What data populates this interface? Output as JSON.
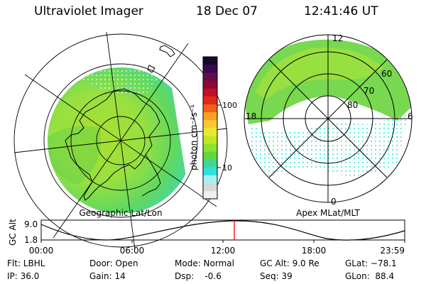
{
  "header": {
    "instrument": "Ultraviolet Imager",
    "date": "18 Dec 07",
    "time": "12:41:46 UT"
  },
  "left_map": {
    "caption": "Geographic Lat/Lon"
  },
  "right_map": {
    "caption": "Apex MLat/MLT",
    "mlt_labels": [
      "12",
      "6",
      "0",
      "18"
    ],
    "mlat_labels": [
      "60",
      "70",
      "80"
    ]
  },
  "colorbar": {
    "unit_label": "photon cm⁻²s⁻¹",
    "tick_labels": [
      "100",
      "10"
    ],
    "scale": "log",
    "colors": [
      "#f0f0f0",
      "#d8d8d8",
      "#a8f0f0",
      "#30e0e0",
      "#40d890",
      "#60d840",
      "#90e030",
      "#c0e820",
      "#e8e830",
      "#f8c830",
      "#f8a020",
      "#f06018",
      "#e02818",
      "#c01028",
      "#900838",
      "#601048",
      "#380850",
      "#180828"
    ]
  },
  "altitude_plot": {
    "axis_label": "GC Alt",
    "y_labels": [
      "9.0",
      "1.8"
    ],
    "x_labels": [
      "00:00",
      "06:00",
      "12:00",
      "18:00",
      "23:59"
    ],
    "current_marker_time": "12:41",
    "marker_color": "#ff0000"
  },
  "footer": {
    "flt": "Flt: LBHL",
    "ip": "IP: 36.0",
    "door": "Door: Open",
    "gain": "Gain: 14",
    "mode": "Mode: Normal",
    "dsp": "Dsp:    -0.6",
    "gcalt": "GC Alt: 9.0 Re",
    "seq": "Seq: 39",
    "glat": "GLat: −78.1",
    "glon": "GLon:  88.4"
  }
}
